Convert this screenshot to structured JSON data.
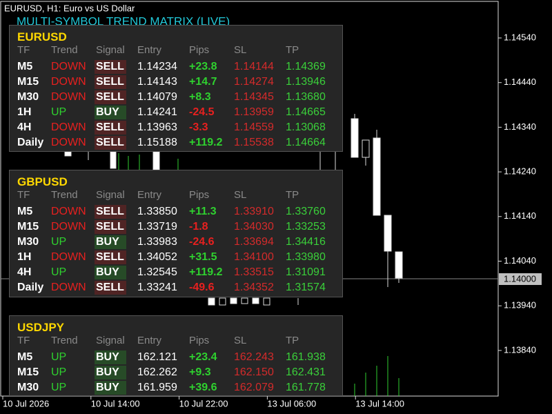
{
  "window": {
    "caption": "EURUSD, H1:  Euro vs US Dollar",
    "indicator_title": "MULTI-SYMBOL TREND MATRIX (LIVE)"
  },
  "price_axis": {
    "labels": [
      "1.14540",
      "1.14440",
      "1.14340",
      "1.14240",
      "1.14140",
      "1.14040",
      "1.13940",
      "1.13840"
    ],
    "current_price": "1.14000"
  },
  "time_axis": {
    "labels": [
      "10 Jul 2026",
      "10 Jul 14:00",
      "10 Jul 22:00",
      "13 Jul 06:00",
      "13 Jul 14:00"
    ]
  },
  "panels": [
    {
      "symbol": "EURUSD",
      "headers": [
        "TF",
        "Trend",
        "Signal",
        "Entry",
        "Pips",
        "SL",
        "TP"
      ],
      "rows": [
        {
          "tf": "M5",
          "trend": "DOWN",
          "signal": "SELL",
          "entry": "1.14234",
          "pips": "+23.8",
          "sl": "1.14144",
          "tp": "1.14369",
          "trend_color": "#e8201f",
          "pips_color": "#2fd12f"
        },
        {
          "tf": "M15",
          "trend": "DOWN",
          "signal": "SELL",
          "entry": "1.14143",
          "pips": "+14.7",
          "sl": "1.14274",
          "tp": "1.13946",
          "trend_color": "#e8201f",
          "pips_color": "#2fd12f"
        },
        {
          "tf": "M30",
          "trend": "DOWN",
          "signal": "SELL",
          "entry": "1.14079",
          "pips": "+8.3",
          "sl": "1.14345",
          "tp": "1.13680",
          "trend_color": "#e8201f",
          "pips_color": "#2fd12f"
        },
        {
          "tf": "1H",
          "trend": "UP",
          "signal": "BUY",
          "entry": "1.14241",
          "pips": "-24.5",
          "sl": "1.13959",
          "tp": "1.14665",
          "trend_color": "#2fd12f",
          "pips_color": "#e8201f"
        },
        {
          "tf": "4H",
          "trend": "DOWN",
          "signal": "SELL",
          "entry": "1.13963",
          "pips": "-3.3",
          "sl": "1.14559",
          "tp": "1.13068",
          "trend_color": "#e8201f",
          "pips_color": "#e8201f"
        },
        {
          "tf": "Daily",
          "trend": "DOWN",
          "signal": "SELL",
          "entry": "1.15188",
          "pips": "+119.2",
          "sl": "1.15538",
          "tp": "1.14664",
          "trend_color": "#e8201f",
          "pips_color": "#2fd12f"
        }
      ]
    },
    {
      "symbol": "GBPUSD",
      "headers": [
        "TF",
        "Trend",
        "Signal",
        "Entry",
        "Pips",
        "SL",
        "TP"
      ],
      "rows": [
        {
          "tf": "M5",
          "trend": "DOWN",
          "signal": "SELL",
          "entry": "1.33850",
          "pips": "+11.3",
          "sl": "1.33910",
          "tp": "1.33760",
          "trend_color": "#e8201f",
          "pips_color": "#2fd12f"
        },
        {
          "tf": "M15",
          "trend": "DOWN",
          "signal": "SELL",
          "entry": "1.33719",
          "pips": "-1.8",
          "sl": "1.34030",
          "tp": "1.33253",
          "trend_color": "#e8201f",
          "pips_color": "#e8201f"
        },
        {
          "tf": "M30",
          "trend": "UP",
          "signal": "BUY",
          "entry": "1.33983",
          "pips": "-24.6",
          "sl": "1.33694",
          "tp": "1.34416",
          "trend_color": "#2fd12f",
          "pips_color": "#e8201f"
        },
        {
          "tf": "1H",
          "trend": "DOWN",
          "signal": "SELL",
          "entry": "1.34052",
          "pips": "+31.5",
          "sl": "1.34100",
          "tp": "1.33980",
          "trend_color": "#e8201f",
          "pips_color": "#2fd12f"
        },
        {
          "tf": "4H",
          "trend": "UP",
          "signal": "BUY",
          "entry": "1.32545",
          "pips": "+119.2",
          "sl": "1.33515",
          "tp": "1.31091",
          "trend_color": "#2fd12f",
          "pips_color": "#2fd12f"
        },
        {
          "tf": "Daily",
          "trend": "DOWN",
          "signal": "SELL",
          "entry": "1.33241",
          "pips": "-49.6",
          "sl": "1.34352",
          "tp": "1.31574",
          "trend_color": "#e8201f",
          "pips_color": "#e8201f"
        }
      ]
    },
    {
      "symbol": "USDJPY",
      "headers": [
        "TF",
        "Trend",
        "Signal",
        "Entry",
        "Pips",
        "SL",
        "TP"
      ],
      "rows": [
        {
          "tf": "M5",
          "trend": "UP",
          "signal": "BUY",
          "entry": "162.121",
          "pips": "+23.4",
          "sl": "162.243",
          "tp": "161.938",
          "trend_color": "#2fd12f",
          "pips_color": "#2fd12f"
        },
        {
          "tf": "M15",
          "trend": "UP",
          "signal": "BUY",
          "entry": "162.262",
          "pips": "+9.3",
          "sl": "162.150",
          "tp": "162.431",
          "trend_color": "#2fd12f",
          "pips_color": "#2fd12f"
        },
        {
          "tf": "M30",
          "trend": "UP",
          "signal": "BUY",
          "entry": "161.959",
          "pips": "+39.6",
          "sl": "162.079",
          "tp": "161.778",
          "trend_color": "#2fd12f",
          "pips_color": "#2fd12f"
        }
      ]
    }
  ]
}
